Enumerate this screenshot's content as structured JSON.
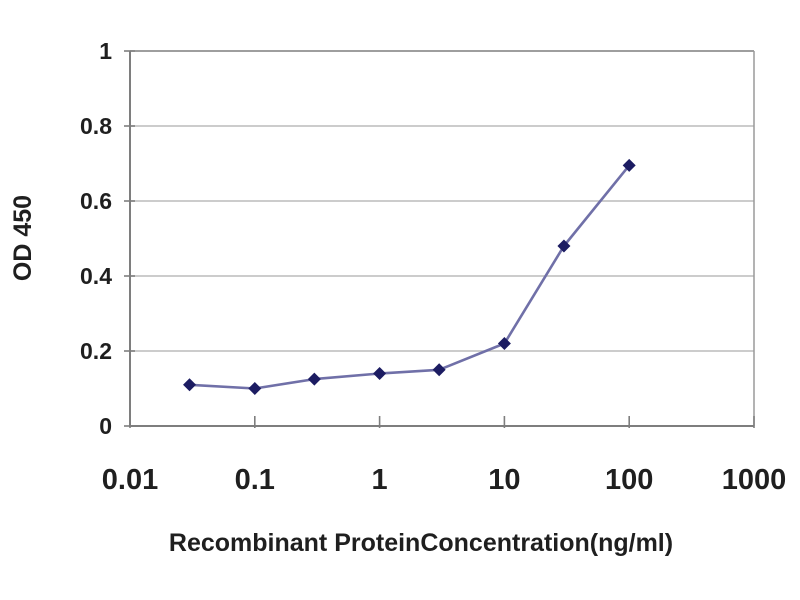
{
  "chart_data": {
    "type": "line",
    "title": "",
    "xlabel": "Recombinant ProteinConcentration(ng/ml)",
    "ylabel": "OD 450",
    "x_scale": "log",
    "y_scale": "linear",
    "xlim": [
      0.01,
      1000
    ],
    "ylim": [
      0,
      1
    ],
    "grid": "horizontal",
    "legend_position": "none",
    "x_ticks": [
      {
        "value": 0.01,
        "label": "0.01"
      },
      {
        "value": 0.1,
        "label": "0.1"
      },
      {
        "value": 1,
        "label": "1"
      },
      {
        "value": 10,
        "label": "10"
      },
      {
        "value": 100,
        "label": "100"
      },
      {
        "value": 1000,
        "label": "1000"
      }
    ],
    "y_ticks": [
      {
        "value": 0,
        "label": "0"
      },
      {
        "value": 0.2,
        "label": "0.2"
      },
      {
        "value": 0.4,
        "label": "0.4"
      },
      {
        "value": 0.6,
        "label": "0.6"
      },
      {
        "value": 0.8,
        "label": "0.8"
      },
      {
        "value": 1,
        "label": "1"
      }
    ],
    "series": [
      {
        "name": "OD 450",
        "marker": "diamond",
        "x": [
          0.03,
          0.1,
          0.3,
          1,
          3,
          10,
          30,
          100
        ],
        "y": [
          0.11,
          0.1,
          0.125,
          0.14,
          0.15,
          0.22,
          0.48,
          0.695
        ]
      }
    ]
  },
  "colors": {
    "background": "#ffffff",
    "axis": "#7e7e7e",
    "plot_border": "#9a9a9a",
    "gridline": "#bcbcbc",
    "text": "#1f1f1f",
    "series_line": "#7070a8",
    "series_marker": "#1c1c62"
  }
}
